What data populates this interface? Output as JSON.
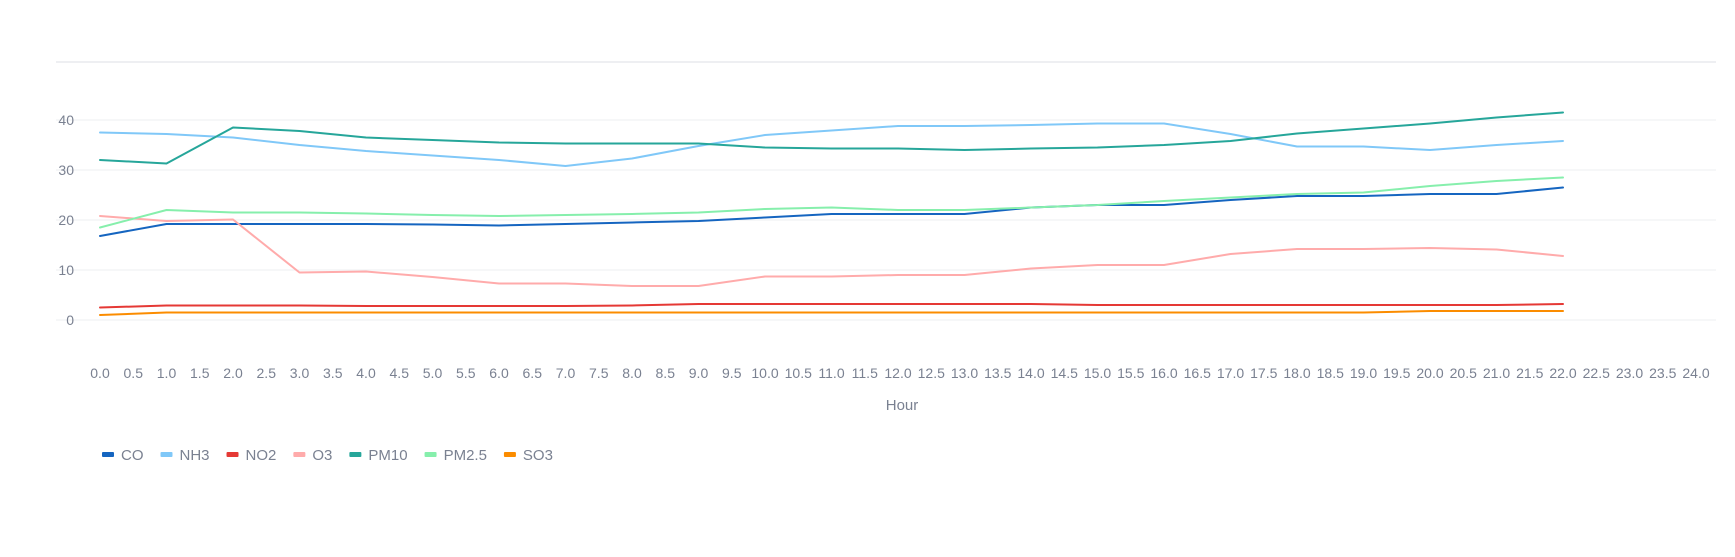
{
  "chart_data": {
    "type": "line",
    "xlabel": "Hour",
    "ylabel": "",
    "xlim": [
      0,
      24
    ],
    "ylim": [
      0,
      40
    ],
    "x_ticks": [
      "0.0",
      "0.5",
      "1.0",
      "1.5",
      "2.0",
      "2.5",
      "3.0",
      "3.5",
      "4.0",
      "4.5",
      "5.0",
      "5.5",
      "6.0",
      "6.5",
      "7.0",
      "7.5",
      "8.0",
      "8.5",
      "9.0",
      "9.5",
      "10.0",
      "10.5",
      "11.0",
      "11.5",
      "12.0",
      "12.5",
      "13.0",
      "13.5",
      "14.0",
      "14.5",
      "15.0",
      "15.5",
      "16.0",
      "16.5",
      "17.0",
      "17.5",
      "18.0",
      "18.5",
      "19.0",
      "19.5",
      "20.0",
      "20.5",
      "21.0",
      "21.5",
      "22.0",
      "22.5",
      "23.0",
      "23.5",
      "24.0"
    ],
    "y_ticks": [
      0,
      10,
      20,
      30,
      40
    ],
    "grid": "horizontal",
    "legend_position": "bottom-left",
    "x": [
      0,
      1,
      2,
      3,
      4,
      5,
      6,
      7,
      8,
      9,
      10,
      11,
      12,
      13,
      14,
      15,
      16,
      17,
      18,
      19,
      20,
      21,
      22
    ],
    "series": [
      {
        "name": "CO",
        "color": "#1565c0",
        "values": [
          16.8,
          19.2,
          19.2,
          19.2,
          19.2,
          19.1,
          18.9,
          19.2,
          19.5,
          19.8,
          20.5,
          21.2,
          21.2,
          21.2,
          22.5,
          23.0,
          23.0,
          24.0,
          24.8,
          24.8,
          25.2,
          25.2,
          26.5
        ]
      },
      {
        "name": "NH3",
        "color": "#80c8f8",
        "values": [
          37.5,
          37.2,
          36.5,
          35.0,
          33.8,
          32.9,
          32.0,
          30.8,
          32.3,
          34.8,
          37.0,
          37.9,
          38.8,
          38.8,
          39.0,
          39.3,
          39.3,
          37.2,
          34.7,
          34.7,
          34.0,
          35.0,
          35.8
        ]
      },
      {
        "name": "NO2",
        "color": "#e53935",
        "values": [
          2.5,
          2.9,
          2.9,
          2.9,
          2.8,
          2.8,
          2.8,
          2.8,
          2.9,
          3.2,
          3.2,
          3.2,
          3.2,
          3.2,
          3.2,
          3.0,
          3.0,
          3.0,
          3.0,
          3.0,
          3.0,
          3.0,
          3.2
        ]
      },
      {
        "name": "O3",
        "color": "#ffabab",
        "values": [
          20.8,
          19.8,
          20.1,
          9.5,
          9.7,
          8.6,
          7.3,
          7.3,
          6.8,
          6.8,
          8.7,
          8.7,
          9.0,
          9.0,
          10.3,
          11.0,
          11.0,
          13.2,
          14.2,
          14.2,
          14.4,
          14.1,
          12.8
        ]
      },
      {
        "name": "PM10",
        "color": "#26a69a",
        "values": [
          32.0,
          31.3,
          38.5,
          37.8,
          36.5,
          36.0,
          35.5,
          35.3,
          35.3,
          35.3,
          34.5,
          34.3,
          34.3,
          34.0,
          34.3,
          34.5,
          35.0,
          35.8,
          37.3,
          38.3,
          39.3,
          40.5,
          41.5
        ]
      },
      {
        "name": "PM2.5",
        "color": "#86efac",
        "values": [
          18.5,
          22.0,
          21.5,
          21.5,
          21.3,
          21.0,
          20.8,
          21.0,
          21.2,
          21.5,
          22.2,
          22.5,
          22.0,
          22.0,
          22.5,
          23.0,
          23.8,
          24.5,
          25.2,
          25.5,
          26.8,
          27.8,
          28.5
        ]
      },
      {
        "name": "SO3",
        "color": "#fb8c00",
        "values": [
          1.0,
          1.5,
          1.5,
          1.5,
          1.5,
          1.5,
          1.5,
          1.5,
          1.5,
          1.5,
          1.5,
          1.5,
          1.5,
          1.5,
          1.5,
          1.5,
          1.5,
          1.5,
          1.5,
          1.5,
          1.8,
          1.8,
          1.8
        ]
      }
    ]
  }
}
